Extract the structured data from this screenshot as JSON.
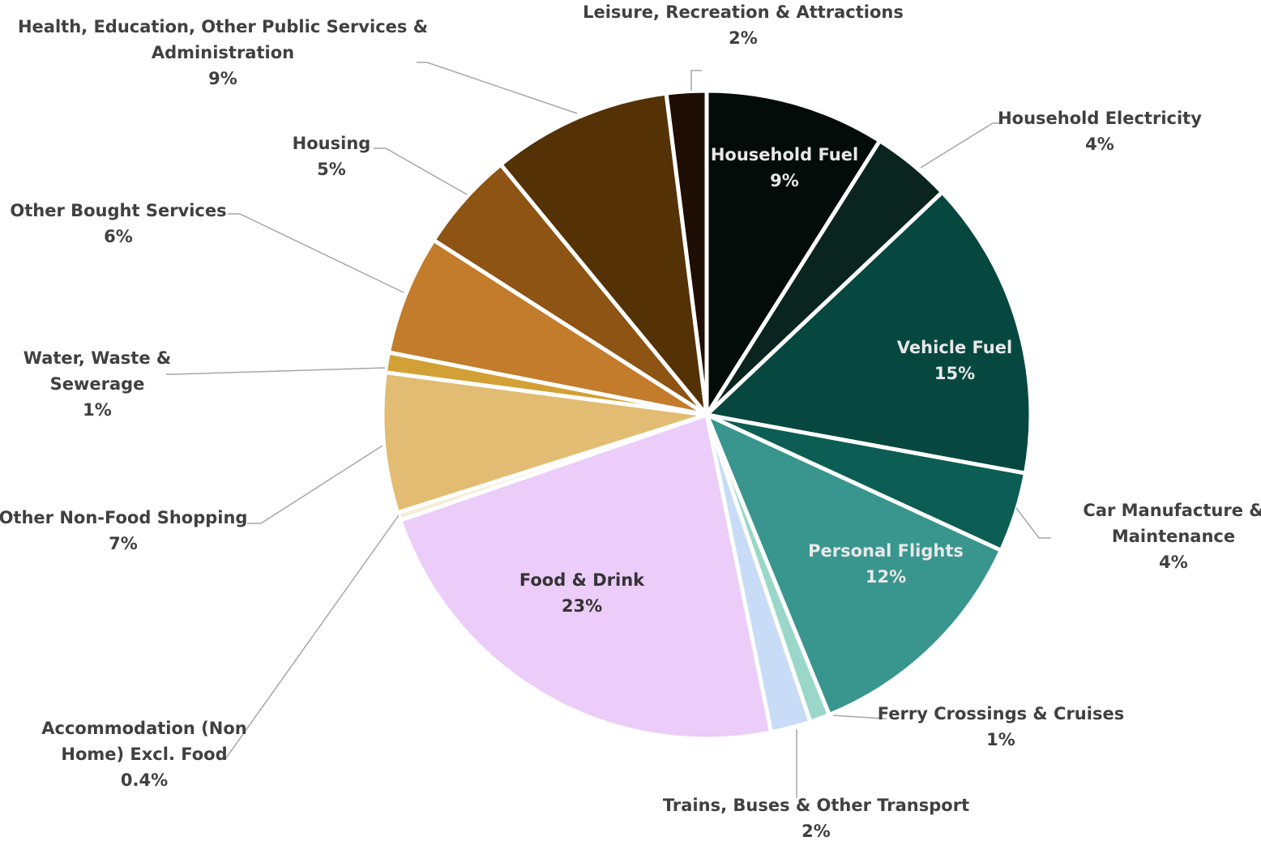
{
  "chart_data": {
    "type": "pie",
    "title": "",
    "start_angle_deg": 0,
    "direction": "clockwise",
    "slices": [
      {
        "label": "Household Fuel",
        "value_label": "9%",
        "value": 9,
        "color": "#040c09",
        "label_position": "inside",
        "label_color": "#e8e8e8"
      },
      {
        "label": "Household Electricity",
        "value_label": "4%",
        "value": 4,
        "color": "#0a241f",
        "label_position": "outside"
      },
      {
        "label": "Vehicle Fuel",
        "value_label": "15%",
        "value": 15,
        "color": "#064840",
        "label_position": "inside",
        "label_color": "#e8e8e8"
      },
      {
        "label": "Car Manufacture & Maintenance",
        "value_label": "4%",
        "value": 4,
        "color": "#0c5e54",
        "label_position": "outside"
      },
      {
        "label": "Personal Flights",
        "value_label": "12%",
        "value": 12,
        "color": "#39968e",
        "label_position": "inside",
        "label_color": "#e8e8e8"
      },
      {
        "label": "Ferry Crossings & Cruises",
        "value_label": "1%",
        "value": 1,
        "color": "#9ad7c8",
        "label_position": "outside"
      },
      {
        "label": "Trains, Buses & Other Transport",
        "value_label": "2%",
        "value": 2,
        "color": "#c8dcf8",
        "label_position": "outside"
      },
      {
        "label": "Food & Drink",
        "value_label": "23%",
        "value": 23,
        "color": "#ecccf8",
        "label_position": "inside",
        "label_color": "#333333"
      },
      {
        "label": "Accommodation (Non Home) Excl. Food",
        "value_label": "0.4%",
        "value": 0.4,
        "color": "#f6ecd6",
        "label_position": "outside"
      },
      {
        "label": "Other Non-Food Shopping",
        "value_label": "7%",
        "value": 7,
        "color": "#e2bc72",
        "label_position": "outside"
      },
      {
        "label": "Water, Waste & Sewerage",
        "value_label": "1%",
        "value": 1,
        "color": "#d2a034",
        "label_position": "outside"
      },
      {
        "label": "Other Bought Services",
        "value_label": "6%",
        "value": 6,
        "color": "#c27c2c",
        "label_position": "outside"
      },
      {
        "label": "Housing",
        "value_label": "5%",
        "value": 5,
        "color": "#8e5414",
        "label_position": "outside"
      },
      {
        "label": "Health, Education, Other Public Services & Administration",
        "value_label": "9%",
        "value": 9,
        "color": "#543206",
        "label_position": "outside"
      },
      {
        "label": "Leisure, Recreation & Attractions",
        "value_label": "2%",
        "value": 2,
        "color": "#1e0e04",
        "label_position": "outside"
      }
    ]
  }
}
